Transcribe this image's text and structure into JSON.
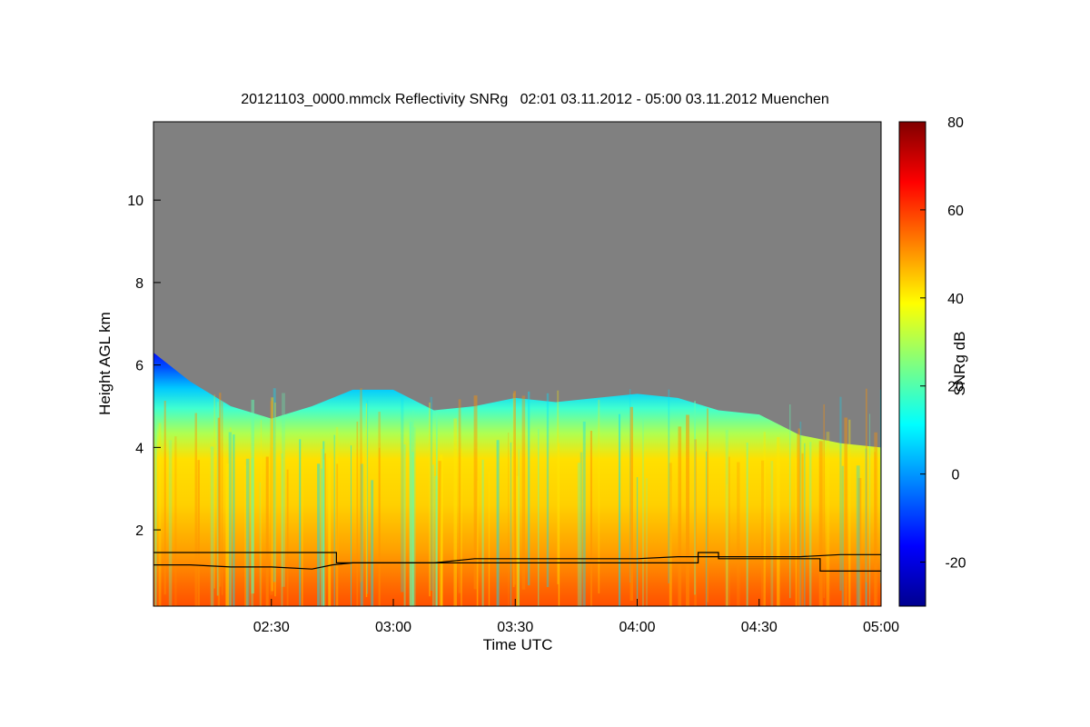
{
  "chart_data": {
    "type": "heatmap",
    "title": "20121103_0000.mmclx Reflectivity SNRg   02:01 03.11.2012 - 05:00 03.11.2012 Muenchen",
    "xlabel": "Time UTC",
    "ylabel": "Height AGL km",
    "xlim": [
      "02:01",
      "05:00"
    ],
    "ylim": [
      0.15,
      11.9
    ],
    "x_ticks": [
      "02:30",
      "03:00",
      "03:30",
      "04:00",
      "04:30",
      "05:00"
    ],
    "y_ticks": [
      2,
      4,
      6,
      8,
      10
    ],
    "colorbar": {
      "label": "SNRg dB",
      "range": [
        -30,
        80
      ],
      "ticks": [
        -20,
        0,
        20,
        40,
        60,
        80
      ],
      "colormap": "jet"
    },
    "no_signal_color": "#808080",
    "echo_top_height_km": [
      {
        "time": "02:01",
        "h": 6.3
      },
      {
        "time": "02:10",
        "h": 5.6
      },
      {
        "time": "02:20",
        "h": 5.0
      },
      {
        "time": "02:30",
        "h": 4.7
      },
      {
        "time": "02:40",
        "h": 5.0
      },
      {
        "time": "02:50",
        "h": 5.4
      },
      {
        "time": "03:00",
        "h": 5.4
      },
      {
        "time": "03:10",
        "h": 4.9
      },
      {
        "time": "03:20",
        "h": 5.0
      },
      {
        "time": "03:30",
        "h": 5.2
      },
      {
        "time": "03:40",
        "h": 5.1
      },
      {
        "time": "03:50",
        "h": 5.2
      },
      {
        "time": "04:00",
        "h": 5.3
      },
      {
        "time": "04:10",
        "h": 5.2
      },
      {
        "time": "04:20",
        "h": 4.9
      },
      {
        "time": "04:30",
        "h": 4.8
      },
      {
        "time": "04:40",
        "h": 4.3
      },
      {
        "time": "04:50",
        "h": 4.1
      },
      {
        "time": "05:00",
        "h": 4.0
      }
    ],
    "overlay_lines": [
      {
        "style": "step",
        "points": [
          {
            "time": "02:01",
            "h": 1.45
          },
          {
            "time": "02:46",
            "h": 1.45
          },
          {
            "time": "02:46",
            "h": 1.2
          },
          {
            "time": "04:15",
            "h": 1.2
          },
          {
            "time": "04:15",
            "h": 1.45
          },
          {
            "time": "04:20",
            "h": 1.45
          },
          {
            "time": "04:20",
            "h": 1.3
          },
          {
            "time": "04:45",
            "h": 1.3
          },
          {
            "time": "04:45",
            "h": 1.0
          },
          {
            "time": "05:00",
            "h": 1.0
          }
        ]
      },
      {
        "style": "noisy",
        "points": [
          {
            "time": "02:01",
            "h": 1.15
          },
          {
            "time": "02:10",
            "h": 1.15
          },
          {
            "time": "02:20",
            "h": 1.1
          },
          {
            "time": "02:30",
            "h": 1.1
          },
          {
            "time": "02:40",
            "h": 1.05
          },
          {
            "time": "02:45",
            "h": 1.15
          },
          {
            "time": "02:50",
            "h": 1.2
          },
          {
            "time": "03:00",
            "h": 1.2
          },
          {
            "time": "03:10",
            "h": 1.2
          },
          {
            "time": "03:20",
            "h": 1.3
          },
          {
            "time": "03:30",
            "h": 1.3
          },
          {
            "time": "03:40",
            "h": 1.3
          },
          {
            "time": "03:50",
            "h": 1.3
          },
          {
            "time": "04:00",
            "h": 1.3
          },
          {
            "time": "04:10",
            "h": 1.35
          },
          {
            "time": "04:20",
            "h": 1.35
          },
          {
            "time": "04:30",
            "h": 1.35
          },
          {
            "time": "04:40",
            "h": 1.35
          },
          {
            "time": "04:50",
            "h": 1.4
          },
          {
            "time": "05:00",
            "h": 1.4
          }
        ]
      }
    ]
  }
}
